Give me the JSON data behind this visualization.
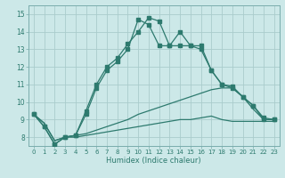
{
  "xlabel": "Humidex (Indice chaleur)",
  "bg_color": "#cce8e8",
  "grid_color": "#aacccc",
  "line_color": "#2d7a6e",
  "xlim": [
    -0.5,
    23.5
  ],
  "ylim": [
    7.5,
    15.5
  ],
  "xticks": [
    0,
    1,
    2,
    3,
    4,
    5,
    6,
    7,
    8,
    9,
    10,
    11,
    12,
    13,
    14,
    15,
    16,
    17,
    18,
    19,
    20,
    21,
    22,
    23
  ],
  "yticks": [
    8,
    9,
    10,
    11,
    12,
    13,
    14,
    15
  ],
  "series1": [
    9.3,
    8.6,
    7.6,
    8.0,
    8.1,
    9.5,
    11.0,
    12.0,
    12.5,
    13.3,
    14.0,
    14.8,
    14.6,
    13.2,
    14.0,
    13.2,
    13.2,
    11.8,
    11.0,
    10.8,
    10.3,
    9.8,
    9.0,
    9.0
  ],
  "series2": [
    9.3,
    8.6,
    7.6,
    8.0,
    8.1,
    9.3,
    10.8,
    11.8,
    12.3,
    13.0,
    14.7,
    14.4,
    13.2,
    13.2,
    13.2,
    13.2,
    13.0,
    11.8,
    11.0,
    10.9,
    10.3,
    9.8,
    9.1,
    9.0
  ],
  "series3": [
    9.3,
    8.8,
    7.8,
    8.0,
    8.1,
    8.2,
    8.4,
    8.6,
    8.8,
    9.0,
    9.3,
    9.5,
    9.7,
    9.9,
    10.1,
    10.3,
    10.5,
    10.7,
    10.8,
    10.8,
    10.3,
    9.6,
    9.0,
    9.0
  ],
  "series4": [
    9.3,
    8.8,
    7.8,
    8.0,
    8.0,
    8.1,
    8.2,
    8.3,
    8.4,
    8.5,
    8.6,
    8.7,
    8.8,
    8.9,
    9.0,
    9.0,
    9.1,
    9.2,
    9.0,
    8.9,
    8.9,
    8.9,
    8.9,
    8.9
  ]
}
